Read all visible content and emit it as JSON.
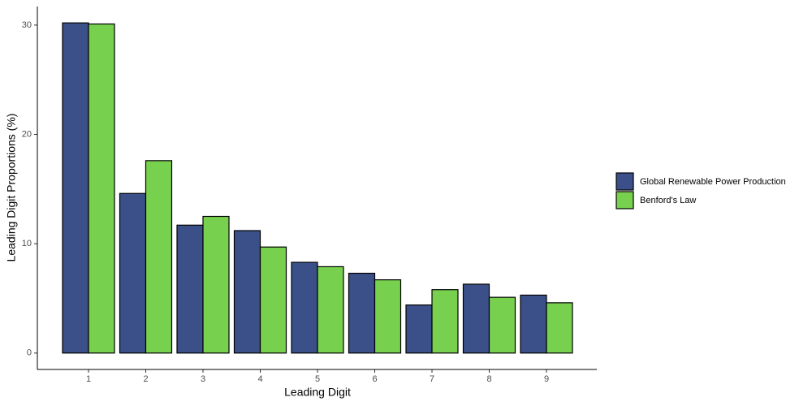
{
  "chart_data": {
    "type": "bar",
    "xlabel": "Leading Digit",
    "ylabel": "Leading Digit Proportions (%)",
    "categories": [
      "1",
      "2",
      "3",
      "4",
      "5",
      "6",
      "7",
      "8",
      "9"
    ],
    "series": [
      {
        "name": "Global Renewable Power Production",
        "color": "#3b5088",
        "values": [
          30.2,
          14.6,
          11.7,
          11.2,
          8.3,
          7.3,
          4.4,
          6.3,
          5.3
        ]
      },
      {
        "name": "Benford's Law",
        "color": "#78d04f",
        "values": [
          30.1,
          17.6,
          12.5,
          9.7,
          7.9,
          6.7,
          5.8,
          5.1,
          4.6
        ]
      }
    ],
    "ylim": [
      -1.5,
      31.7
    ],
    "yticks": [
      0,
      10,
      20,
      30
    ],
    "grid": false,
    "legend": "right"
  }
}
